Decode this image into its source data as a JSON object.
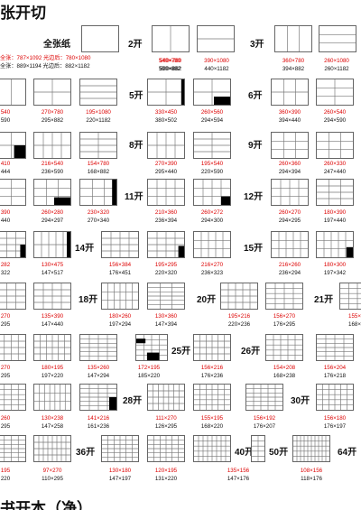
{
  "title": "张开切",
  "bottom_title": "书开本（净）",
  "header": {
    "row1": "全张：787×1092 光边后：780×1080",
    "row2": "全张：889×1194 光边后：882×1182"
  },
  "labels": {
    "full": "全张纸",
    "k2": "2开",
    "k3": "3开",
    "k5": "5开",
    "k6": "6开",
    "k8": "8开",
    "k9": "9开",
    "k11": "11开",
    "k12": "12开",
    "k14": "14开",
    "k15": "15开",
    "k18": "18开",
    "k20": "20开",
    "k21": "21开",
    "k25": "25开",
    "k26": "26开",
    "k28": "28开",
    "k30": "30开",
    "k36": "36开",
    "k40": "40开",
    "k50": "50开",
    "k64": "64开"
  },
  "captions": [
    {
      "id": "c2a",
      "a": "540×780",
      "b": "590×882"
    },
    {
      "id": "c2b",
      "a": "390×1080",
      "b": "440×1182"
    },
    {
      "id": "c3a",
      "a": "360×780",
      "b": "394×882"
    },
    {
      "id": "c3b",
      "a": "260×1080",
      "b": "260×1182"
    },
    {
      "id": "r2a",
      "a": "540",
      "b": "590"
    },
    {
      "id": "r2b",
      "a": "270×780",
      "b": "295×882"
    },
    {
      "id": "r2c",
      "a": "195×1080",
      "b": "220×1182"
    },
    {
      "id": "r2d",
      "a": "330×450",
      "b": "380×502"
    },
    {
      "id": "r2e",
      "a": "260×560",
      "b": "294×594"
    },
    {
      "id": "r2f",
      "a": "360×390",
      "b": "394×440"
    },
    {
      "id": "r2g",
      "a": "260×540",
      "b": "294×590"
    },
    {
      "id": "r3a",
      "a": "410",
      "b": "444"
    },
    {
      "id": "r3b",
      "a": "216×540",
      "b": "236×590"
    },
    {
      "id": "r3c",
      "a": "154×780",
      "b": "168×882"
    },
    {
      "id": "r3d",
      "a": "270×390",
      "b": "295×440"
    },
    {
      "id": "r3e",
      "a": "195×540",
      "b": "220×590"
    },
    {
      "id": "r3f",
      "a": "260×360",
      "b": "294×394"
    },
    {
      "id": "r3g",
      "a": "260×330",
      "b": "247×440"
    },
    {
      "id": "r4a",
      "a": "390",
      "b": "440"
    },
    {
      "id": "r4b",
      "a": "260×280",
      "b": "294×297"
    },
    {
      "id": "r4c",
      "a": "230×320",
      "b": "270×340"
    },
    {
      "id": "r4d",
      "a": "210×360",
      "b": "236×394"
    },
    {
      "id": "r4e",
      "a": "260×272",
      "b": "294×300"
    },
    {
      "id": "r4f",
      "a": "260×270",
      "b": "294×295"
    },
    {
      "id": "r4g",
      "a": "180×390",
      "b": "197×440"
    },
    {
      "id": "r5a",
      "a": "282",
      "b": "322"
    },
    {
      "id": "r5b",
      "a": "130×475",
      "b": "147×517"
    },
    {
      "id": "r5c",
      "a": "156×384",
      "b": "176×451"
    },
    {
      "id": "r5d",
      "a": "195×295",
      "b": "220×320"
    },
    {
      "id": "r5e",
      "a": "216×270",
      "b": "236×323"
    },
    {
      "id": "r5f",
      "a": "216×260",
      "b": "236×294"
    },
    {
      "id": "r5g",
      "a": "180×300",
      "b": "197×342"
    },
    {
      "id": "r6a",
      "a": "270",
      "b": "295"
    },
    {
      "id": "r6b",
      "a": "135×390",
      "b": "147×440"
    },
    {
      "id": "r6c",
      "a": "180×260",
      "b": "197×294"
    },
    {
      "id": "r6d",
      "a": "130×360",
      "b": "147×394"
    },
    {
      "id": "r6e",
      "a": "195×216",
      "b": "220×236"
    },
    {
      "id": "r6f",
      "a": "156×270",
      "b": "176×295"
    },
    {
      "id": "r6g",
      "a": "155×",
      "b": "168×"
    },
    {
      "id": "r7a",
      "a": "270",
      "b": "295"
    },
    {
      "id": "r7b",
      "a": "180×195",
      "b": "197×220"
    },
    {
      "id": "r7c",
      "a": "135×260",
      "b": "147×294"
    },
    {
      "id": "r7d",
      "a": "172×195",
      "b": "185×220"
    },
    {
      "id": "r7e",
      "a": "156×216",
      "b": "176×236"
    },
    {
      "id": "r7f",
      "a": "154×208",
      "b": "168×238"
    },
    {
      "id": "r7g",
      "a": "156×204",
      "b": "176×218"
    },
    {
      "id": "r8a",
      "a": "260",
      "b": "295"
    },
    {
      "id": "r8b",
      "a": "130×238",
      "b": "147×258"
    },
    {
      "id": "r8c",
      "a": "141×216",
      "b": "161×236"
    },
    {
      "id": "r8d",
      "a": "111×270",
      "b": "126×295"
    },
    {
      "id": "r8e",
      "a": "155×195",
      "b": "168×220"
    },
    {
      "id": "r8f",
      "a": "156×192",
      "b": "176×207"
    },
    {
      "id": "r8g",
      "a": "156×180",
      "b": "176×197"
    },
    {
      "id": "r9a",
      "a": "195",
      "b": "220"
    },
    {
      "id": "r9b",
      "a": "97×270",
      "b": "110×295"
    },
    {
      "id": "r9c",
      "a": "130×180",
      "b": "147×197"
    },
    {
      "id": "r9d",
      "a": "120×195",
      "b": "131×220"
    },
    {
      "id": "r9e",
      "a": "135×156",
      "b": "147×176"
    },
    {
      "id": "r9f",
      "a": "108×156",
      "b": "118×176"
    }
  ]
}
